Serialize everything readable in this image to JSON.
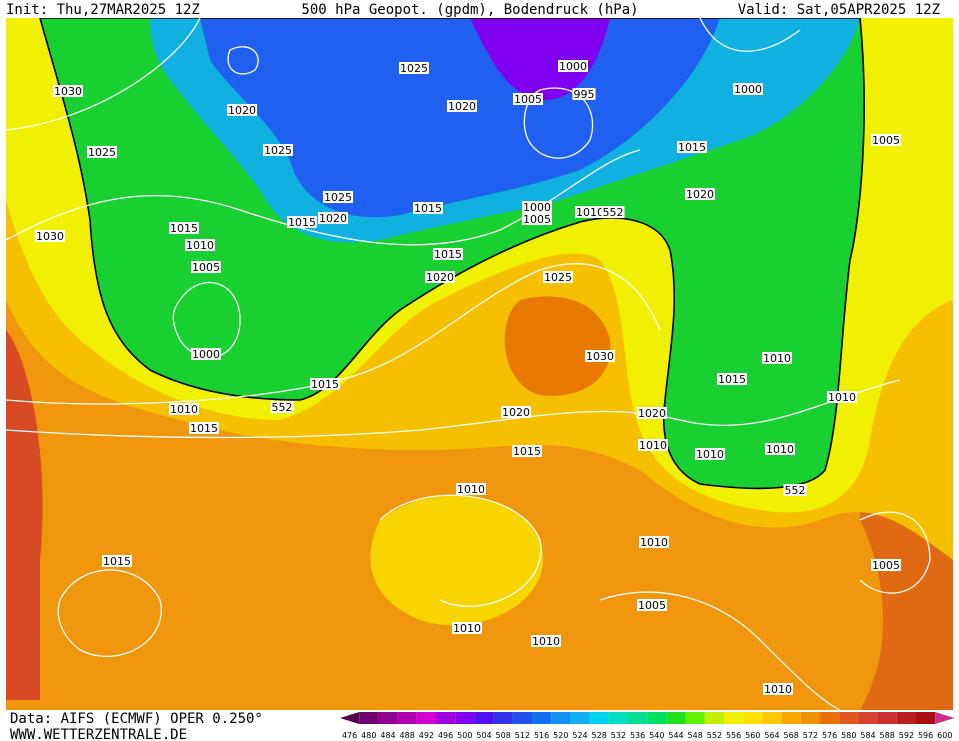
{
  "header": {
    "init": "Init: Thu,27MAR2025 12Z",
    "title": "500 hPa Geopot. (gpdm), Bodendruck (hPa)",
    "valid": "Valid: Sat,05APR2025 12Z"
  },
  "footer": {
    "source": "Data: AIFS (ECMWF) OPER 0.250°",
    "site": "WWW.WETTERZENTRALE.DE"
  },
  "colorbar": {
    "labels": [
      476,
      480,
      484,
      488,
      492,
      496,
      500,
      504,
      508,
      512,
      516,
      520,
      524,
      528,
      532,
      536,
      540,
      544,
      548,
      552,
      556,
      560,
      564,
      568,
      572,
      576,
      580,
      584,
      588,
      592,
      596,
      600
    ],
    "colors": [
      "#500050",
      "#700070",
      "#900090",
      "#b000b0",
      "#d000d0",
      "#a000e0",
      "#8000f0",
      "#5010f0",
      "#3030e8",
      "#2050f0",
      "#1070f0",
      "#1090f0",
      "#10b0f0",
      "#00d0f0",
      "#00e0c0",
      "#00e090",
      "#00e060",
      "#20e020",
      "#60f000",
      "#c0f000",
      "#f0f000",
      "#ffe000",
      "#ffc800",
      "#f8a800",
      "#f09000",
      "#e87000",
      "#e05820",
      "#d84030",
      "#c83030",
      "#b82020",
      "#a81010",
      "#d0308c"
    ]
  },
  "contour_labels": [
    1030,
    1025,
    1020,
    1025,
    1025,
    1020,
    1000,
    1005,
    995,
    1000,
    1005,
    1015,
    1020,
    1025,
    1015,
    1020,
    1015,
    1000,
    1005,
    1010,
    552,
    1030,
    1015,
    1010,
    1005,
    1015,
    1020,
    1025,
    1000,
    1030,
    1010,
    1015,
    1015,
    552,
    1010,
    1015,
    1020,
    1020,
    1010,
    1010,
    1015,
    1010,
    1010,
    552,
    1010,
    1010,
    1005,
    1015,
    1005,
    1010,
    1010,
    1010
  ]
}
